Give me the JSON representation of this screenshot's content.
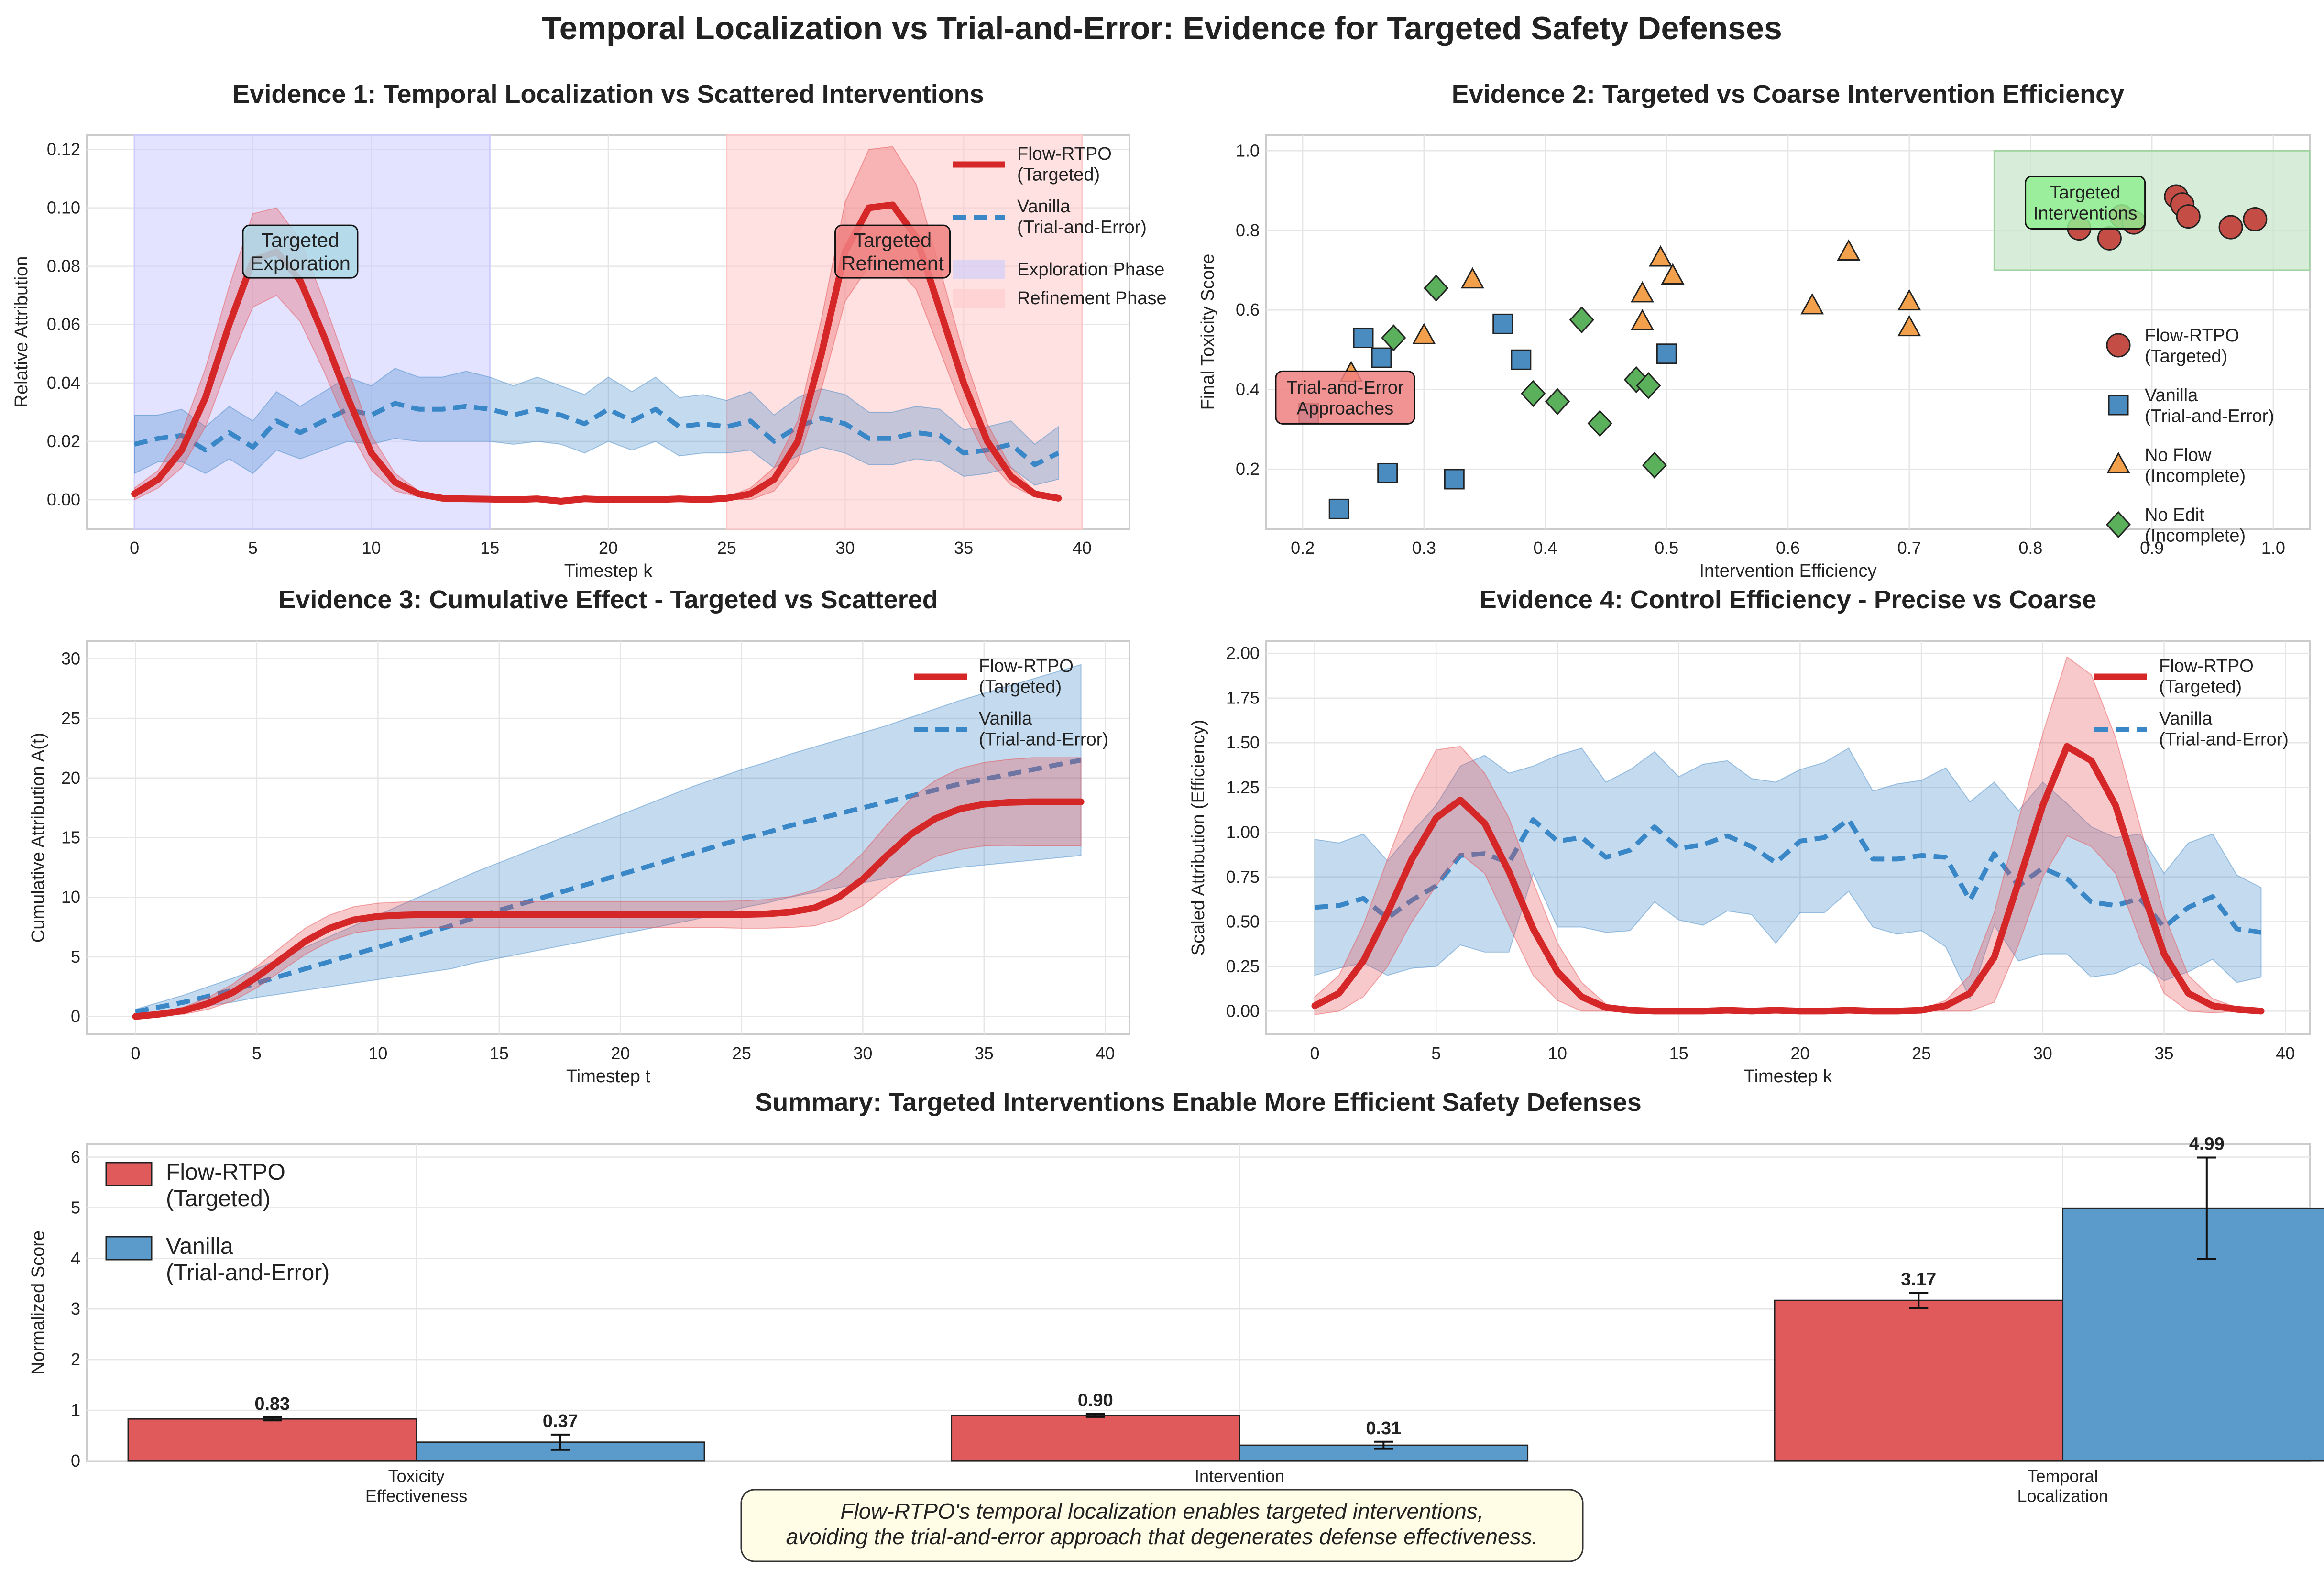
{
  "suptitle": "Temporal Localization vs Trial-and-Error: Evidence for Targeted Safety Defenses",
  "colors": {
    "red": "#d62728",
    "blue": "#1f77b4",
    "orange": "#ff7f0e",
    "green": "#2ca02c",
    "redfill": "#e84c4f",
    "bluefill": "#3d85c6"
  },
  "chart_data": [
    {
      "type": "line",
      "title": "Evidence 1: Temporal Localization vs Scattered Interventions",
      "xlabel": "Timestep k",
      "ylabel": "Relative Attribution",
      "xlim": [
        -2,
        42
      ],
      "ylim": [
        -0.01,
        0.125
      ],
      "xticks": [
        0,
        5,
        10,
        15,
        20,
        25,
        30,
        35,
        40
      ],
      "yticks": [
        0.0,
        0.02,
        0.04,
        0.06,
        0.08,
        0.1,
        0.12
      ],
      "ytick_labels": [
        "0.00",
        "0.02",
        "0.04",
        "0.06",
        "0.08",
        "0.10",
        "0.12"
      ],
      "grid": true,
      "legend_position": "top-right",
      "regions": [
        {
          "name": "Exploration Phase",
          "x": [
            0,
            15
          ],
          "color": "#ccccff"
        },
        {
          "name": "Refinement Phase",
          "x": [
            25,
            40
          ],
          "color": "#ffc9c9"
        }
      ],
      "annotations": [
        {
          "text": "Targeted\nExploration",
          "x": 7,
          "y": 0.085,
          "color": "#add8e6"
        },
        {
          "text": "Targeted\nRefinement",
          "x": 32,
          "y": 0.085,
          "color": "#f08080"
        }
      ],
      "series": [
        {
          "name": "Flow-RTPO\n(Targeted)",
          "style": "solid",
          "x_start": 0,
          "values": [
            0.002,
            0.007,
            0.017,
            0.035,
            0.06,
            0.082,
            0.085,
            0.075,
            0.056,
            0.035,
            0.016,
            0.006,
            0.002,
            0.0005,
            0.0003,
            0.0002,
            0,
            0.0003,
            -0.0005,
            0.0003,
            0,
            0,
            0,
            0.0003,
            0,
            0.0005,
            0.002,
            0.007,
            0.02,
            0.05,
            0.085,
            0.1,
            0.101,
            0.09,
            0.065,
            0.04,
            0.02,
            0.008,
            0.002,
            0.0005
          ],
          "spread": [
            0.002,
            0.003,
            0.006,
            0.01,
            0.013,
            0.016,
            0.015,
            0.014,
            0.012,
            0.01,
            0.006,
            0.003,
            0.001,
            0.0005,
            0.0003,
            0.0002,
            0.0002,
            0.0002,
            0.0002,
            0.0002,
            0.0002,
            0.0002,
            0.0002,
            0.0002,
            0.0002,
            0.0004,
            0.002,
            0.004,
            0.007,
            0.012,
            0.017,
            0.02,
            0.02,
            0.018,
            0.014,
            0.01,
            0.006,
            0.003,
            0.001,
            0.0005
          ]
        },
        {
          "name": "Vanilla\n(Trial-and-Error)",
          "style": "dashed",
          "x_start": 0,
          "values": [
            0.019,
            0.021,
            0.022,
            0.017,
            0.023,
            0.018,
            0.027,
            0.023,
            0.027,
            0.031,
            0.029,
            0.033,
            0.031,
            0.031,
            0.032,
            0.031,
            0.029,
            0.031,
            0.029,
            0.026,
            0.031,
            0.027,
            0.031,
            0.025,
            0.026,
            0.025,
            0.027,
            0.02,
            0.025,
            0.028,
            0.026,
            0.021,
            0.021,
            0.023,
            0.022,
            0.016,
            0.017,
            0.019,
            0.012,
            0.016
          ],
          "spread": [
            0.01,
            0.008,
            0.009,
            0.008,
            0.009,
            0.009,
            0.01,
            0.009,
            0.01,
            0.011,
            0.01,
            0.012,
            0.011,
            0.011,
            0.012,
            0.011,
            0.01,
            0.011,
            0.01,
            0.01,
            0.011,
            0.01,
            0.011,
            0.01,
            0.01,
            0.009,
            0.01,
            0.009,
            0.01,
            0.01,
            0.01,
            0.009,
            0.009,
            0.009,
            0.009,
            0.008,
            0.008,
            0.008,
            0.007,
            0.009
          ]
        }
      ]
    },
    {
      "type": "scatter",
      "title": "Evidence 2: Targeted vs Coarse Intervention Efficiency",
      "xlabel": "Intervention Efficiency",
      "ylabel": "Final Toxicity Score",
      "xlim": [
        0.17,
        1.03
      ],
      "ylim": [
        0.05,
        1.04
      ],
      "xticks": [
        0.2,
        0.3,
        0.4,
        0.5,
        0.6,
        0.7,
        0.8,
        0.9,
        1.0
      ],
      "xtick_labels": [
        "0.2",
        "0.3",
        "0.4",
        "0.5",
        "0.6",
        "0.7",
        "0.8",
        "0.9",
        "1.0"
      ],
      "yticks": [
        0.2,
        0.4,
        0.6,
        0.8,
        1.0
      ],
      "ytick_labels": [
        "0.2",
        "0.4",
        "0.6",
        "0.8",
        "1.0"
      ],
      "grid": true,
      "legend_position": "lower-right",
      "regions": [
        {
          "name": "",
          "x": [
            0.77,
            1.03
          ],
          "y": [
            0.7,
            1.0
          ],
          "color": "#c8e6c9"
        }
      ],
      "annotations": [
        {
          "text": "Targeted\nInterventions",
          "x": 0.845,
          "y": 0.87,
          "color": "#90ee90"
        },
        {
          "text": "Trial-and-Error\nApproaches",
          "x": 0.235,
          "y": 0.38,
          "color": "#f08080"
        }
      ],
      "series": [
        {
          "name": "Flow-RTPO\n(Targeted)",
          "marker": "circle",
          "points": [
            [
              0.84,
              0.805
            ],
            [
              0.865,
              0.78
            ],
            [
              0.875,
              0.835
            ],
            [
              0.885,
              0.82
            ],
            [
              0.92,
              0.885
            ],
            [
              0.925,
              0.865
            ],
            [
              0.93,
              0.835
            ],
            [
              0.965,
              0.808
            ],
            [
              0.985,
              0.828
            ]
          ]
        },
        {
          "name": "Vanilla\n(Trial-and-Error)",
          "marker": "square",
          "points": [
            [
              0.205,
              0.34
            ],
            [
              0.23,
              0.1
            ],
            [
              0.25,
              0.53
            ],
            [
              0.265,
              0.48
            ],
            [
              0.27,
              0.19
            ],
            [
              0.325,
              0.175
            ],
            [
              0.365,
              0.565
            ],
            [
              0.38,
              0.475
            ],
            [
              0.5,
              0.49
            ]
          ]
        },
        {
          "name": "No Flow\n(Incomplete)",
          "marker": "triangle",
          "points": [
            [
              0.24,
              0.44
            ],
            [
              0.3,
              0.535
            ],
            [
              0.34,
              0.675
            ],
            [
              0.48,
              0.64
            ],
            [
              0.48,
              0.57
            ],
            [
              0.495,
              0.73
            ],
            [
              0.505,
              0.685
            ],
            [
              0.62,
              0.61
            ],
            [
              0.65,
              0.745
            ],
            [
              0.7,
              0.62
            ],
            [
              0.7,
              0.555
            ]
          ]
        },
        {
          "name": "No Edit\n(Incomplete)",
          "marker": "diamond",
          "points": [
            [
              0.275,
              0.53
            ],
            [
              0.31,
              0.655
            ],
            [
              0.39,
              0.39
            ],
            [
              0.41,
              0.37
            ],
            [
              0.43,
              0.575
            ],
            [
              0.445,
              0.315
            ],
            [
              0.475,
              0.425
            ],
            [
              0.485,
              0.41
            ],
            [
              0.49,
              0.21
            ]
          ]
        }
      ]
    },
    {
      "type": "line",
      "title": "Evidence 3: Cumulative Effect - Targeted vs Scattered",
      "xlabel": "Timestep t",
      "ylabel": "Cumulative Attribution A(t)",
      "xlim": [
        -2,
        41
      ],
      "ylim": [
        -1.5,
        31.5
      ],
      "xticks": [
        0,
        5,
        10,
        15,
        20,
        25,
        30,
        35,
        40
      ],
      "yticks": [
        0,
        5,
        10,
        15,
        20,
        25,
        30
      ],
      "grid": true,
      "legend_position": "top-right",
      "series": [
        {
          "name": "Flow-RTPO\n(Targeted)",
          "style": "solid",
          "x_start": 0,
          "values": [
            0.0,
            0.2,
            0.5,
            1.1,
            2.0,
            3.3,
            4.8,
            6.3,
            7.4,
            8.1,
            8.4,
            8.5,
            8.55,
            8.55,
            8.55,
            8.55,
            8.55,
            8.55,
            8.55,
            8.55,
            8.55,
            8.55,
            8.55,
            8.55,
            8.55,
            8.55,
            8.6,
            8.75,
            9.1,
            10.0,
            11.5,
            13.5,
            15.3,
            16.6,
            17.4,
            17.8,
            17.95,
            18.0,
            18.0,
            18.0
          ],
          "spread": [
            0.1,
            0.15,
            0.3,
            0.5,
            0.7,
            0.9,
            1.0,
            1.1,
            1.1,
            1.1,
            1.1,
            1.1,
            1.1,
            1.1,
            1.1,
            1.1,
            1.1,
            1.1,
            1.1,
            1.1,
            1.1,
            1.1,
            1.1,
            1.1,
            1.1,
            1.15,
            1.2,
            1.3,
            1.5,
            1.8,
            2.2,
            2.6,
            3.0,
            3.2,
            3.4,
            3.5,
            3.6,
            3.7,
            3.7,
            3.7
          ]
        },
        {
          "name": "Vanilla\n(Trial-and-Error)",
          "style": "dashed",
          "x_start": 0,
          "values": [
            0.4,
            0.8,
            1.2,
            1.7,
            2.2,
            2.8,
            3.4,
            4.0,
            4.6,
            5.2,
            5.8,
            6.4,
            7.0,
            7.6,
            8.3,
            8.9,
            9.5,
            10.1,
            10.7,
            11.3,
            11.9,
            12.5,
            13.1,
            13.7,
            14.3,
            14.9,
            15.4,
            16.0,
            16.5,
            17.0,
            17.5,
            18.0,
            18.5,
            19.0,
            19.5,
            19.9,
            20.3,
            20.7,
            21.1,
            21.5
          ],
          "spread": [
            0.2,
            0.4,
            0.6,
            0.8,
            1.0,
            1.2,
            1.5,
            1.8,
            2.1,
            2.4,
            2.7,
            3.0,
            3.3,
            3.6,
            3.8,
            4.0,
            4.2,
            4.4,
            4.6,
            4.8,
            5.0,
            5.2,
            5.4,
            5.6,
            5.7,
            5.8,
            5.9,
            6.0,
            6.1,
            6.2,
            6.3,
            6.4,
            6.6,
            6.8,
            7.0,
            7.2,
            7.4,
            7.6,
            7.8,
            8.0
          ]
        }
      ]
    },
    {
      "type": "line",
      "title": "Evidence 4: Control Efficiency - Precise vs Coarse",
      "xlabel": "Timestep k",
      "ylabel": "Scaled Attribution (Efficiency)",
      "xlim": [
        -2,
        41
      ],
      "ylim": [
        -0.13,
        2.07
      ],
      "xticks": [
        0,
        5,
        10,
        15,
        20,
        25,
        30,
        35,
        40
      ],
      "yticks": [
        0.0,
        0.25,
        0.5,
        0.75,
        1.0,
        1.25,
        1.5,
        1.75,
        2.0
      ],
      "ytick_labels": [
        "0.00",
        "0.25",
        "0.50",
        "0.75",
        "1.00",
        "1.25",
        "1.50",
        "1.75",
        "2.00"
      ],
      "grid": true,
      "legend_position": "top-right",
      "series": [
        {
          "name": "Flow-RTPO\n(Targeted)",
          "style": "solid",
          "x_start": 0,
          "values": [
            0.03,
            0.1,
            0.28,
            0.55,
            0.85,
            1.08,
            1.18,
            1.05,
            0.78,
            0.46,
            0.22,
            0.08,
            0.02,
            0.005,
            0,
            0,
            0,
            0.005,
            0,
            0.005,
            0,
            0,
            0.005,
            0,
            0,
            0.005,
            0.03,
            0.1,
            0.3,
            0.72,
            1.15,
            1.48,
            1.4,
            1.15,
            0.72,
            0.32,
            0.1,
            0.03,
            0.01,
            0
          ],
          "spread": [
            0.05,
            0.1,
            0.2,
            0.3,
            0.35,
            0.38,
            0.3,
            0.28,
            0.3,
            0.26,
            0.16,
            0.08,
            0.02,
            0.005,
            0.003,
            0.003,
            0.003,
            0.003,
            0.003,
            0.003,
            0.003,
            0.003,
            0.003,
            0.003,
            0.003,
            0.005,
            0.03,
            0.1,
            0.25,
            0.35,
            0.4,
            0.5,
            0.48,
            0.38,
            0.32,
            0.22,
            0.1,
            0.04,
            0.01,
            0.005
          ]
        },
        {
          "name": "Vanilla\n(Trial-and-Error)",
          "style": "dashed",
          "x_start": 0,
          "values": [
            0.58,
            0.59,
            0.63,
            0.52,
            0.62,
            0.7,
            0.87,
            0.88,
            0.83,
            1.07,
            0.95,
            0.97,
            0.86,
            0.9,
            1.03,
            0.91,
            0.93,
            0.98,
            0.92,
            0.83,
            0.95,
            0.97,
            1.07,
            0.85,
            0.85,
            0.87,
            0.86,
            0.62,
            0.88,
            0.7,
            0.8,
            0.74,
            0.61,
            0.59,
            0.63,
            0.47,
            0.58,
            0.64,
            0.46,
            0.44
          ],
          "spread": [
            0.38,
            0.35,
            0.36,
            0.32,
            0.38,
            0.45,
            0.5,
            0.55,
            0.5,
            0.3,
            0.48,
            0.5,
            0.42,
            0.45,
            0.42,
            0.4,
            0.45,
            0.42,
            0.38,
            0.45,
            0.4,
            0.42,
            0.4,
            0.38,
            0.42,
            0.42,
            0.5,
            0.55,
            0.4,
            0.42,
            0.48,
            0.42,
            0.42,
            0.38,
            0.36,
            0.3,
            0.36,
            0.35,
            0.3,
            0.25
          ]
        }
      ]
    },
    {
      "type": "bar",
      "title": "Summary: Targeted Interventions Enable More Efficient Safety Defenses",
      "xlabel": "",
      "ylabel": "Normalized Score",
      "ylim": [
        0,
        6.25
      ],
      "yticks": [
        0,
        1,
        2,
        3,
        4,
        5,
        6
      ],
      "grid": true,
      "legend_position": "top-left",
      "categories": [
        "Toxicity\nEffectiveness",
        "Intervention\nEfficiency",
        "Temporal\nLocalization"
      ],
      "series": [
        {
          "name": "Flow-RTPO\n(Targeted)",
          "values": [
            0.83,
            0.9,
            3.17
          ],
          "errors": [
            0.03,
            0.03,
            0.15
          ],
          "value_labels": [
            "0.83",
            "0.90",
            "3.17"
          ]
        },
        {
          "name": "Vanilla\n(Trial-and-Error)",
          "values": [
            0.37,
            0.31,
            4.99
          ],
          "errors": [
            0.15,
            0.07,
            1.0
          ],
          "value_labels": [
            "0.37",
            "0.31",
            "4.99"
          ]
        }
      ]
    }
  ],
  "caption": "Flow-RTPO's temporal localization enables targeted interventions,\navoiding the trial-and-error approach that degenerates defense effectiveness."
}
